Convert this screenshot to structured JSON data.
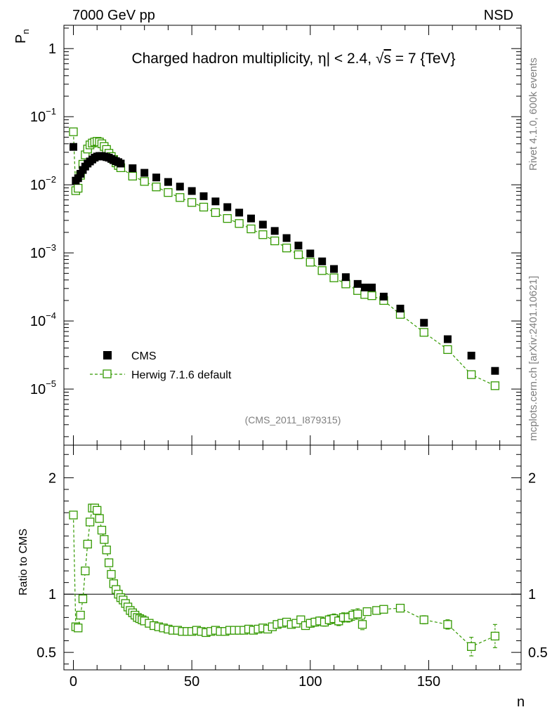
{
  "header": {
    "left": "7000 GeV pp",
    "right": "NSD",
    "side_top": "Rivet 4.1.0,  600k events",
    "side_bottom": "mcplots.cern.ch [arXiv:2401.10621]"
  },
  "chart_data": [
    {
      "type": "scatter",
      "title": "Charged hadron multiplicity, η| < 2.4, √s = 7 {TeV}",
      "title_parts": {
        "a": "Charged hadron multiplicity, ",
        "eta": "η",
        "b": "| < 2.4, ",
        "sqrt": "√",
        "s": "s",
        "c": " = 7 {TeV}"
      },
      "ylabel": "P",
      "ylabel_sub": "n",
      "yscale": "log",
      "ylim": [
        1.5e-06,
        2.2
      ],
      "xlim": [
        -4,
        189
      ],
      "yticks": [
        {
          "value": 1,
          "base": "1",
          "exp": ""
        },
        {
          "value": 0.1,
          "base": "10",
          "exp": "−1"
        },
        {
          "value": 0.01,
          "base": "10",
          "exp": "−2"
        },
        {
          "value": 0.001,
          "base": "10",
          "exp": "−3"
        },
        {
          "value": 0.0001,
          "base": "10",
          "exp": "−4"
        },
        {
          "value": 1e-05,
          "base": "10",
          "exp": "−5"
        }
      ],
      "watermark": "(CMS_2011_I879315)",
      "legend": {
        "position": "bottom-left",
        "entries": [
          "CMS",
          "Herwig 7.1.6 default"
        ]
      },
      "series": [
        {
          "name": "CMS",
          "marker": "filled-square",
          "color": "#000000",
          "x": [
            0,
            1,
            2,
            3,
            4,
            5,
            6,
            7,
            8,
            9,
            10,
            11,
            12,
            13,
            14,
            15,
            16,
            17,
            18,
            19,
            20,
            25,
            30,
            35,
            40,
            45,
            50,
            55,
            60,
            65,
            70,
            75,
            80,
            85,
            90,
            95,
            100,
            105,
            110,
            115,
            120,
            123,
            126,
            131,
            138,
            148,
            158,
            168,
            178
          ],
          "y": [
            0.036,
            0.0115,
            0.0125,
            0.0145,
            0.0165,
            0.0185,
            0.0205,
            0.022,
            0.0235,
            0.025,
            0.026,
            0.0265,
            0.0265,
            0.026,
            0.0255,
            0.025,
            0.024,
            0.023,
            0.0222,
            0.0215,
            0.0205,
            0.0175,
            0.015,
            0.0128,
            0.011,
            0.0094,
            0.0081,
            0.0068,
            0.0057,
            0.0047,
            0.0039,
            0.0032,
            0.0026,
            0.0021,
            0.00165,
            0.00128,
            0.00098,
            0.00075,
            0.00058,
            0.00044,
            0.00035,
            0.00031,
            0.00031,
            0.000228,
            0.000152,
            9.4e-05,
            5.4e-05,
            3.1e-05,
            1.85e-05
          ]
        },
        {
          "name": "Herwig 7.1.6 default",
          "marker": "open-square",
          "color": "#339900",
          "x": [
            0,
            1,
            2,
            3,
            4,
            5,
            6,
            7,
            8,
            9,
            10,
            11,
            12,
            13,
            14,
            15,
            16,
            17,
            18,
            19,
            20,
            25,
            30,
            35,
            40,
            45,
            50,
            55,
            60,
            65,
            70,
            75,
            80,
            85,
            90,
            95,
            100,
            105,
            110,
            115,
            120,
            123,
            126,
            131,
            138,
            148,
            158,
            168,
            178
          ],
          "y": [
            0.06,
            0.0082,
            0.0089,
            0.0138,
            0.02,
            0.0275,
            0.0335,
            0.0385,
            0.041,
            0.0425,
            0.0435,
            0.0425,
            0.04,
            0.0365,
            0.033,
            0.029,
            0.026,
            0.0235,
            0.021,
            0.0192,
            0.0178,
            0.0134,
            0.0112,
            0.0093,
            0.0077,
            0.0065,
            0.0055,
            0.0047,
            0.0039,
            0.0032,
            0.0027,
            0.00225,
            0.00185,
            0.0015,
            0.00118,
            0.00094,
            0.00073,
            0.00055,
            0.00043,
            0.00035,
            0.00028,
            0.000245,
            0.000235,
            0.0002,
            0.000125,
            6.8e-05,
            3.8e-05,
            1.63e-05,
            1.12e-05
          ]
        }
      ]
    },
    {
      "type": "scatter",
      "ylabel": "Ratio to CMS",
      "xlabel": "n",
      "ylim": [
        0.35,
        2.28
      ],
      "xlim": [
        -4,
        189
      ],
      "yticks": [
        "0.5",
        "1",
        "2"
      ],
      "xticks": [
        "0",
        "50",
        "100",
        "150"
      ],
      "reference_line": 1,
      "series": [
        {
          "name": "Herwig 7.1.6 default / CMS",
          "color": "#339900",
          "x": [
            0,
            1,
            2,
            3,
            4,
            5,
            6,
            7,
            8,
            9,
            10,
            11,
            12,
            13,
            14,
            15,
            16,
            17,
            18,
            19,
            20,
            21,
            22,
            23,
            24,
            25,
            26,
            27,
            28,
            29,
            30,
            32,
            34,
            36,
            38,
            40,
            42,
            44,
            46,
            48,
            50,
            52,
            54,
            56,
            58,
            60,
            62,
            64,
            66,
            68,
            70,
            72,
            74,
            76,
            78,
            80,
            82,
            84,
            86,
            88,
            90,
            92,
            94,
            96,
            98,
            100,
            102,
            104,
            106,
            108,
            110,
            112,
            114,
            116,
            118,
            120,
            122,
            124,
            128,
            131,
            138,
            148,
            158,
            168,
            178
          ],
          "y": [
            1.68,
            0.72,
            0.71,
            0.82,
            0.96,
            1.2,
            1.43,
            1.62,
            1.74,
            1.74,
            1.72,
            1.65,
            1.55,
            1.47,
            1.38,
            1.27,
            1.17,
            1.09,
            1.04,
            1.0,
            0.97,
            0.95,
            0.92,
            0.89,
            0.86,
            0.84,
            0.82,
            0.8,
            0.79,
            0.78,
            0.77,
            0.75,
            0.73,
            0.72,
            0.71,
            0.7,
            0.69,
            0.69,
            0.68,
            0.68,
            0.68,
            0.69,
            0.68,
            0.67,
            0.68,
            0.69,
            0.68,
            0.68,
            0.69,
            0.69,
            0.69,
            0.69,
            0.7,
            0.69,
            0.7,
            0.71,
            0.7,
            0.72,
            0.74,
            0.75,
            0.76,
            0.74,
            0.75,
            0.78,
            0.73,
            0.75,
            0.76,
            0.77,
            0.76,
            0.78,
            0.79,
            0.77,
            0.8,
            0.8,
            0.82,
            0.83,
            0.74,
            0.85,
            0.86,
            0.87,
            0.88,
            0.78,
            0.74,
            0.55,
            0.64
          ],
          "err": [
            0.01,
            0.01,
            0.01,
            0.01,
            0.01,
            0.01,
            0.01,
            0.01,
            0.01,
            0.01,
            0.01,
            0.01,
            0.01,
            0.01,
            0.01,
            0.01,
            0.01,
            0.01,
            0.01,
            0.01,
            0.01,
            0.01,
            0.01,
            0.01,
            0.01,
            0.01,
            0.01,
            0.01,
            0.01,
            0.01,
            0.01,
            0.01,
            0.01,
            0.01,
            0.01,
            0.01,
            0.01,
            0.01,
            0.01,
            0.01,
            0.01,
            0.01,
            0.01,
            0.01,
            0.01,
            0.01,
            0.01,
            0.01,
            0.01,
            0.01,
            0.01,
            0.01,
            0.015,
            0.015,
            0.015,
            0.02,
            0.02,
            0.02,
            0.025,
            0.025,
            0.025,
            0.03,
            0.03,
            0.03,
            0.03,
            0.035,
            0.035,
            0.035,
            0.035,
            0.04,
            0.04,
            0.04,
            0.04,
            0.04,
            0.045,
            0.045,
            0.045,
            0.03,
            0.03,
            0.03,
            0.03,
            0.035,
            0.04,
            0.08,
            0.1
          ]
        }
      ]
    }
  ]
}
